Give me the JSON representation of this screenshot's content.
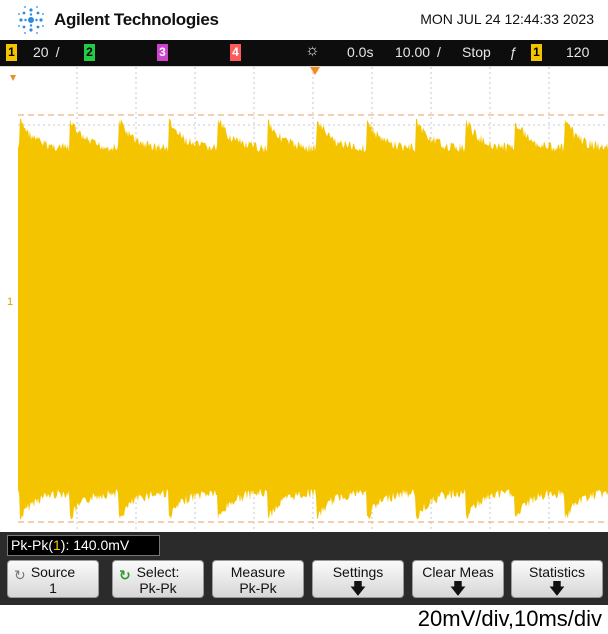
{
  "header": {
    "brand": "Agilent Technologies",
    "datetime": "MON JUL 24 12:44:33 2023"
  },
  "status": {
    "ch1_num": "1",
    "ch1_scale": "20 /",
    "ch2_num": "2",
    "ch3_num": "3",
    "ch4_num": "4",
    "time_delay": "0.0s",
    "time_scale": "10.00 /",
    "run_state": "Stop",
    "trigger_slope": "ƒ",
    "trigger_ch": "1",
    "trigger_level": "120 "
  },
  "display": {
    "ch1_marker": "1",
    "trace_color": "#f5c400"
  },
  "measurement": {
    "label": "Pk-Pk(",
    "channel": "1",
    "value": "): 140.0mV"
  },
  "softkeys": [
    {
      "line1": "Source",
      "line2": "1"
    },
    {
      "line1": "Select:",
      "line2": "Pk-Pk"
    },
    {
      "line1": "Measure",
      "line2": "Pk-Pk"
    },
    {
      "line1": "Settings"
    },
    {
      "line1": "Clear Meas"
    },
    {
      "line1": "Statistics"
    }
  ],
  "caption": "20mV/div,10ms/div"
}
